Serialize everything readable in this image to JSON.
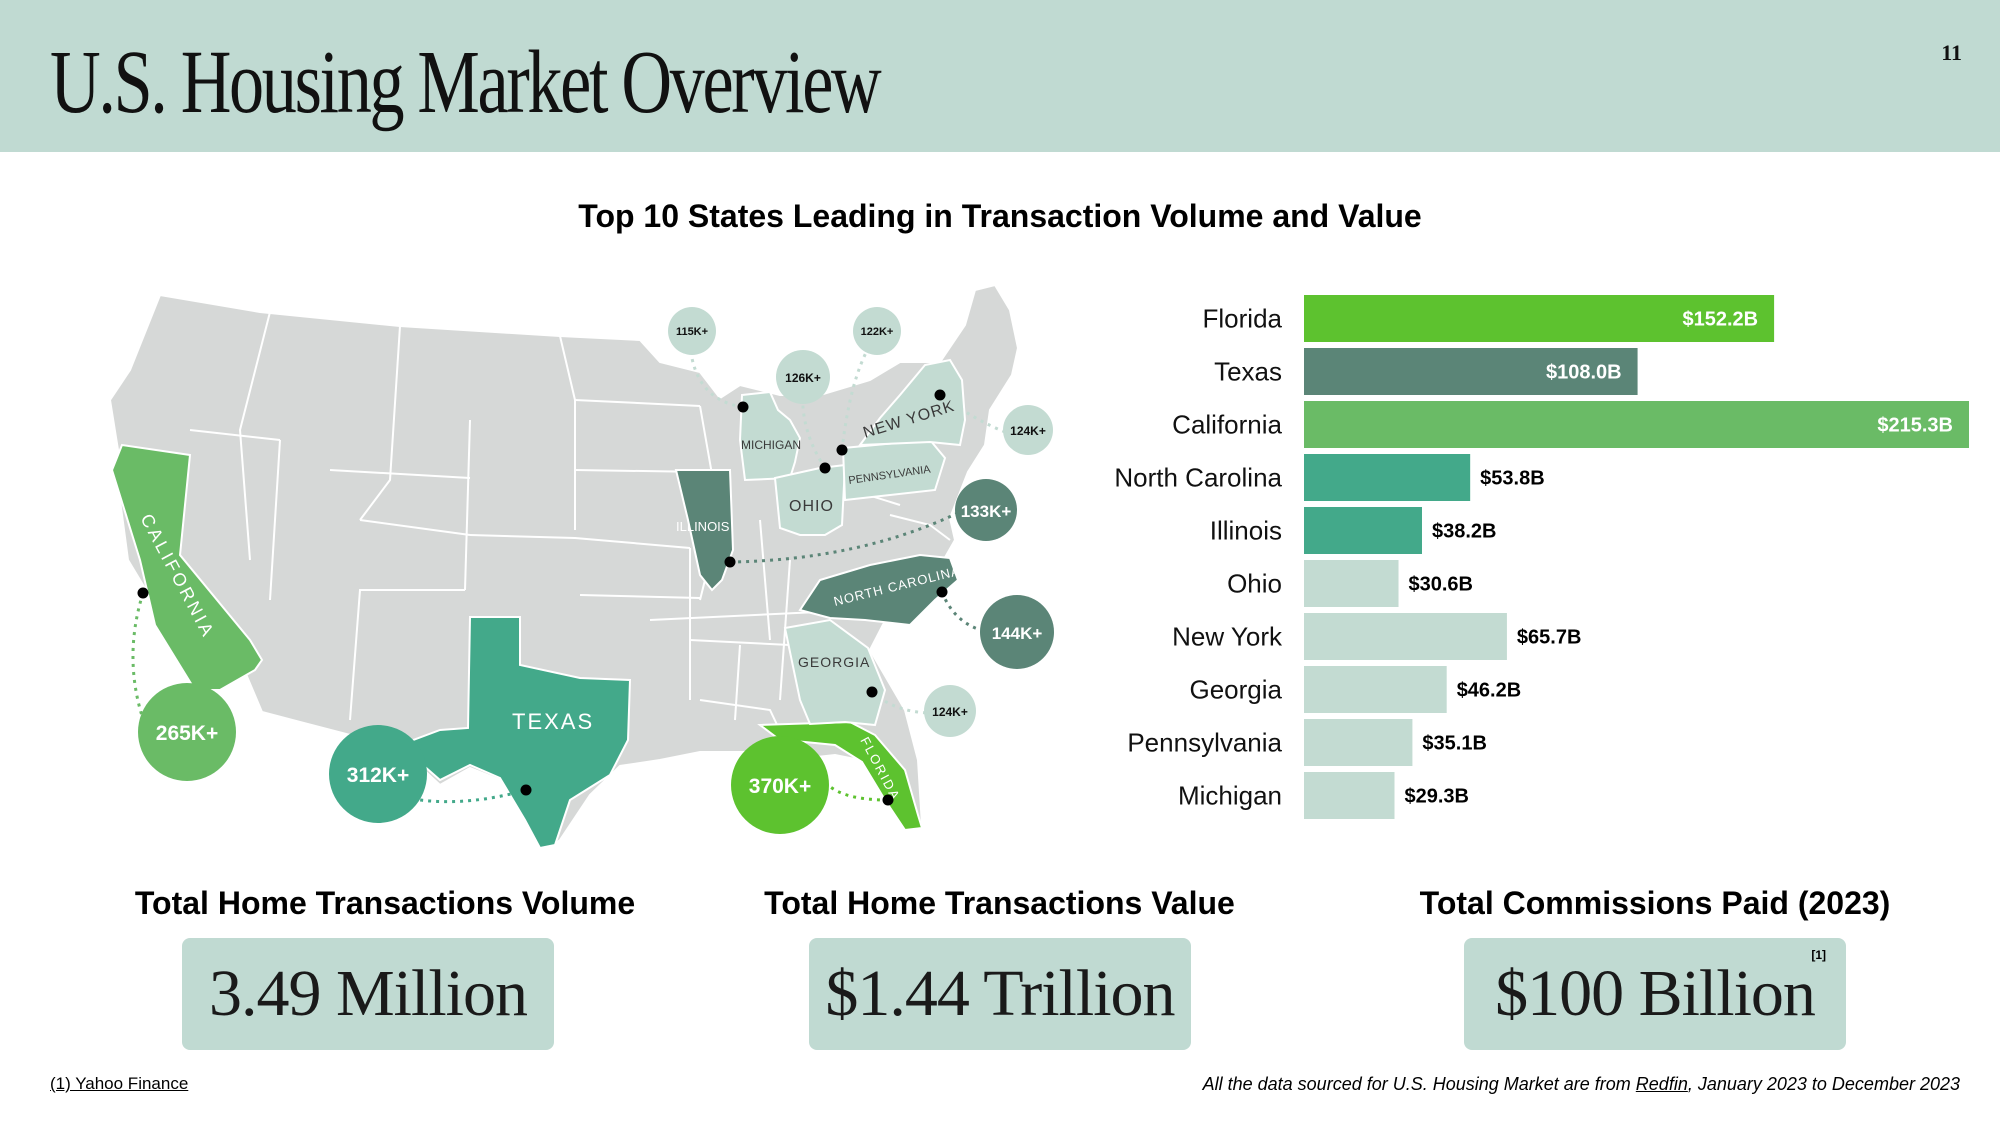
{
  "header": {
    "title": "U.S. Housing Market Overview",
    "page_number": "11"
  },
  "map": {
    "state_labels": {
      "california": "CALIFORNIA",
      "texas": "TEXAS",
      "florida": "FLORIDA",
      "illinois": "ILLINOIS",
      "michigan": "MICHIGAN",
      "ohio": "OHIO",
      "new_york": "NEW YORK",
      "pennsylvania": "PENNSYLVANIA",
      "north_carolina": "NORTH CAROLINA",
      "georgia": "GEORGIA"
    },
    "volume_bubbles": {
      "california": "265K+",
      "texas": "312K+",
      "florida": "370K+",
      "illinois": "133K+",
      "north_carolina": "144K+",
      "georgia": "124K+",
      "pennsylvania": "124K+",
      "ohio": "126K+",
      "michigan": "115K+",
      "new_york": "122K+"
    }
  },
  "chart_data": {
    "type": "bar",
    "orientation": "horizontal",
    "title": "Top 10 States Leading in Transaction Volume and Value",
    "categories": [
      "Florida",
      "Texas",
      "California",
      "North Carolina",
      "Illinois",
      "Ohio",
      "New York",
      "Georgia",
      "Pennsylvania",
      "Michigan"
    ],
    "values": [
      152.2,
      108.0,
      215.3,
      53.8,
      38.2,
      30.6,
      65.7,
      46.2,
      35.1,
      29.3
    ],
    "value_labels": [
      "$152.2B",
      "$108.0B",
      "$215.3B",
      "$53.8B",
      "$38.2B",
      "$30.6B",
      "$65.7B",
      "$46.2B",
      "$35.1B",
      "$29.3B"
    ],
    "unit": "$B",
    "colors": [
      "#5dc22f",
      "#5b8577",
      "#6abb66",
      "#43a98a",
      "#43a98a",
      "#c3dbd2",
      "#c3dbd2",
      "#c3dbd2",
      "#c3dbd2",
      "#c3dbd2"
    ],
    "label_inside": [
      true,
      true,
      true,
      false,
      false,
      false,
      false,
      false,
      false,
      false
    ],
    "grid": false,
    "legend": "none"
  },
  "stats": [
    {
      "label": "Total Home Transactions Volume",
      "value": "3.49 Million"
    },
    {
      "label": "Total Home Transactions Value",
      "value": "$1.44 Trillion"
    },
    {
      "label": "Total Commissions Paid (2023)",
      "value": "$100 Billion",
      "footnote_mark": "[1]"
    }
  ],
  "footer": {
    "left_source": "(1) Yahoo Finance",
    "right_prefix": "All the data sourced for U.S. Housing Market are from ",
    "right_link": "Redfin",
    "right_suffix": ", January 2023 to December 2023"
  }
}
